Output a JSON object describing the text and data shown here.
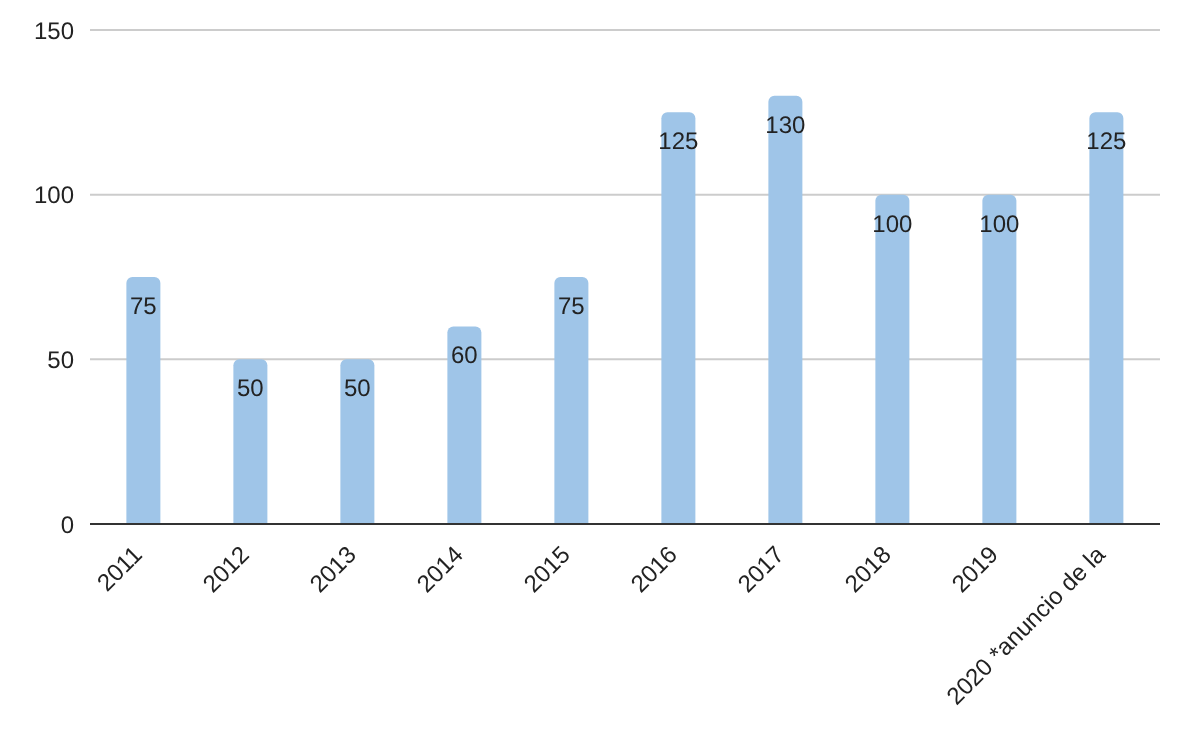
{
  "chart_data": {
    "type": "bar",
    "categories": [
      "2011",
      "2012",
      "2013",
      "2014",
      "2015",
      "2016",
      "2017",
      "2018",
      "2019",
      "2020 *anuncio de la"
    ],
    "values": [
      75,
      50,
      50,
      60,
      75,
      125,
      130,
      100,
      100,
      125
    ],
    "color": "#9fc5e8",
    "ylim": [
      0,
      150
    ],
    "yticks": [
      0,
      50,
      100,
      150
    ],
    "grid": "y",
    "data_labels": true
  }
}
